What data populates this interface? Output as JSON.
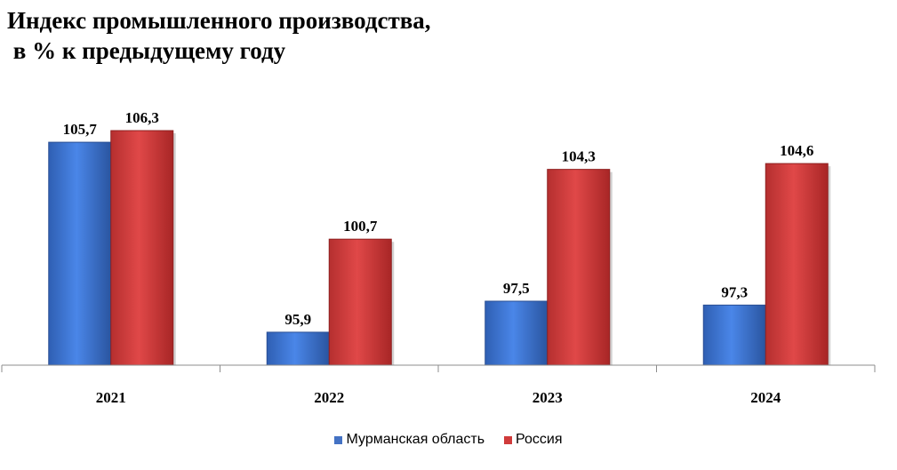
{
  "title_line1": "Индекс промышленного производства,",
  "title_line2": " в % к предыдущему году",
  "chart_data": {
    "type": "bar",
    "title": "Индекс промышленного производства, в % к предыдущему году",
    "categories": [
      "2021",
      "2022",
      "2023",
      "2024"
    ],
    "series": [
      {
        "name": "Мурманская область",
        "values": [
          105.7,
          95.9,
          97.5,
          97.3
        ],
        "labels": [
          "105,7",
          "95,9",
          "97,5",
          "97,3"
        ],
        "color": "#4472C4"
      },
      {
        "name": "Россия",
        "values": [
          106.3,
          100.7,
          104.3,
          104.6
        ],
        "labels": [
          "106,3",
          "100,7",
          "104,3",
          "104,6"
        ],
        "color": "#D03B3B"
      }
    ],
    "xlabel": "",
    "ylabel": "",
    "ylim": [
      94.2,
      106.3
    ],
    "grid": false,
    "legend": "bottom",
    "data_labels": true
  }
}
